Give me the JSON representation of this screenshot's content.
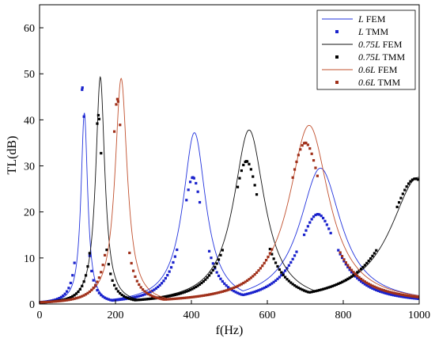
{
  "chart_data": {
    "type": "line",
    "xlabel": "f(Hz)",
    "ylabel": "TL(dB)",
    "xlim": [
      0,
      1000
    ],
    "ylim": [
      0,
      65
    ],
    "xticks": [
      "0",
      "200",
      "400",
      "600",
      "800",
      "1000"
    ],
    "yticks": [
      "0",
      "10",
      "20",
      "30",
      "40",
      "50",
      "60"
    ],
    "legend_position": "top-right",
    "grid": false,
    "series": [
      {
        "name_main": "L",
        "name_suffix": " FEM",
        "style": "line",
        "color": "#2233dd",
        "peaks": [
          {
            "f": 118,
            "tl": 41.5
          },
          {
            "f": 408,
            "tl": 37.2
          },
          {
            "f": 740,
            "tl": 29.5
          }
        ]
      },
      {
        "name_main": "L",
        "name_suffix": " TMM",
        "style": "markers",
        "color": "#1a22cc",
        "peaks": [
          {
            "f": 113,
            "tl": 47.0
          },
          {
            "f": 404,
            "tl": 27.5
          },
          {
            "f": 733,
            "tl": 19.5
          }
        ]
      },
      {
        "name_main": "0.75L",
        "name_suffix": " FEM",
        "style": "line",
        "color": "#111111",
        "peaks": [
          {
            "f": 160,
            "tl": 49.3
          },
          {
            "f": 552,
            "tl": 37.8
          },
          {
            "f": 998,
            "tl": 27.5
          }
        ]
      },
      {
        "name_main": "0.75L",
        "name_suffix": " TMM",
        "style": "markers",
        "color": "#000000",
        "peaks": [
          {
            "f": 155,
            "tl": 41.0
          },
          {
            "f": 545,
            "tl": 31.0
          },
          {
            "f": 990,
            "tl": 27.2
          }
        ]
      },
      {
        "name_main": "0.6L",
        "name_suffix": " FEM",
        "style": "line",
        "color": "#c1502e",
        "peaks": [
          {
            "f": 215,
            "tl": 49.0
          },
          {
            "f": 710,
            "tl": 38.8
          }
        ]
      },
      {
        "name_main": "0.6L",
        "name_suffix": " TMM",
        "style": "markers",
        "color": "#a0301a",
        "peaks": [
          {
            "f": 205,
            "tl": 44.5
          },
          {
            "f": 700,
            "tl": 35.0
          }
        ]
      }
    ]
  }
}
